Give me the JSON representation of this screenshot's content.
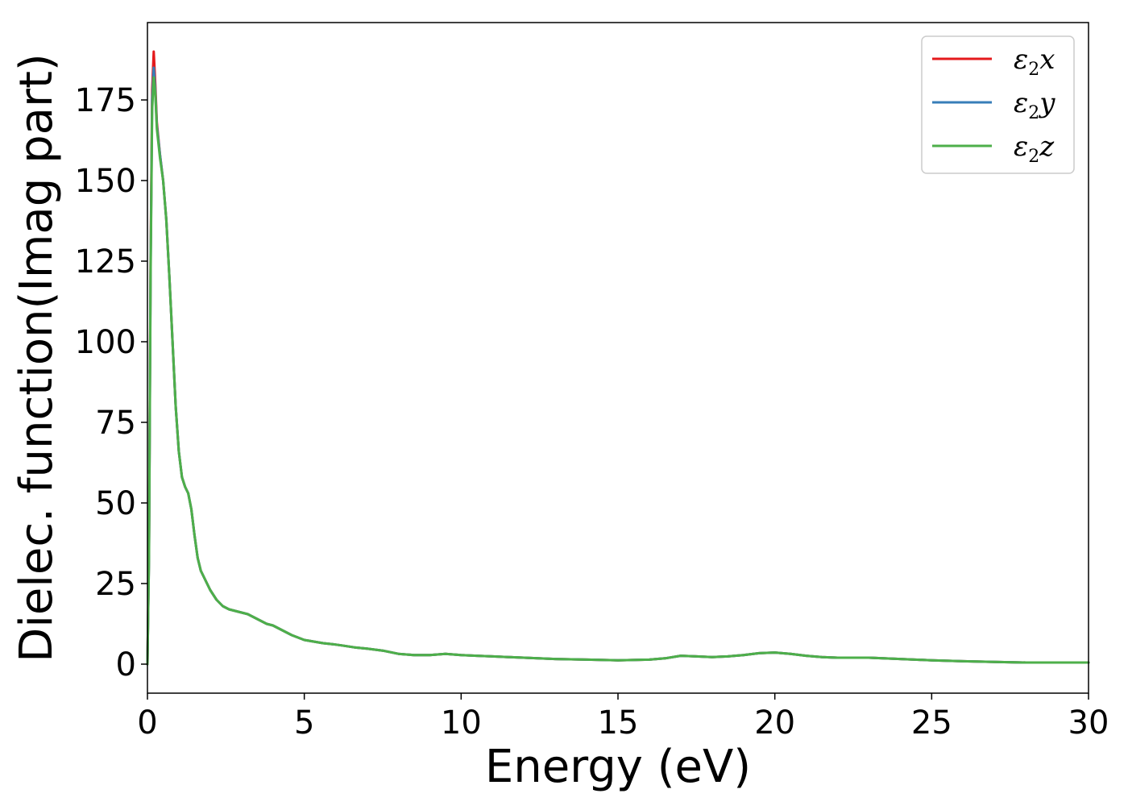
{
  "chart_data": {
    "type": "line",
    "title": "",
    "xlabel": "Energy (eV)",
    "ylabel": "Dielec. function(Imag part)",
    "xlim": [
      0,
      30
    ],
    "ylim": [
      -9,
      199
    ],
    "xticks": [
      0,
      5,
      10,
      15,
      20,
      25,
      30
    ],
    "yticks": [
      0,
      25,
      50,
      75,
      100,
      125,
      150,
      175
    ],
    "grid": false,
    "legend_position": "top-right",
    "series": [
      {
        "name": "ε2x",
        "legend_base": "ε",
        "legend_sub": "2",
        "legend_suffix": "x",
        "color": "#e41a1c",
        "x": [
          0,
          0.05,
          0.1,
          0.15,
          0.2,
          0.25,
          0.3,
          0.4,
          0.5,
          0.6,
          0.7,
          0.8,
          0.9,
          1.0,
          1.1,
          1.2,
          1.3,
          1.4,
          1.5,
          1.6,
          1.7,
          1.8,
          1.9,
          2.0,
          2.2,
          2.4,
          2.6,
          2.8,
          3.0,
          3.2,
          3.4,
          3.6,
          3.8,
          4.0,
          4.3,
          4.6,
          5.0,
          5.3,
          5.6,
          5.9,
          6.2,
          6.6,
          7.0,
          7.5,
          8.0,
          8.5,
          9.0,
          9.5,
          10.0,
          10.5,
          11.0,
          11.5,
          12.0,
          13.0,
          14.0,
          15.0,
          16.0,
          16.5,
          17.0,
          17.5,
          18.0,
          18.5,
          19.0,
          19.5,
          20.0,
          20.5,
          21.0,
          21.5,
          22.0,
          22.5,
          23.0,
          24.0,
          25.0,
          26.0,
          27.0,
          28.0,
          29.0,
          30.0
        ],
        "values": [
          0,
          35,
          125,
          178,
          190,
          180,
          168,
          158,
          150,
          138,
          120,
          100,
          80,
          66,
          58,
          55,
          53,
          48,
          40,
          33,
          29,
          27,
          25,
          23,
          20,
          18,
          17,
          16.5,
          16,
          15.5,
          14.5,
          13.5,
          12.5,
          12,
          10.5,
          9,
          7.5,
          7,
          6.5,
          6.2,
          5.8,
          5.2,
          4.8,
          4.2,
          3.2,
          2.8,
          2.8,
          3.2,
          2.8,
          2.6,
          2.4,
          2.2,
          2.0,
          1.6,
          1.4,
          1.2,
          1.4,
          1.8,
          2.6,
          2.4,
          2.2,
          2.4,
          2.8,
          3.4,
          3.6,
          3.2,
          2.6,
          2.2,
          2.0,
          2.0,
          2.0,
          1.6,
          1.2,
          0.9,
          0.7,
          0.5,
          0.5,
          0.5
        ]
      },
      {
        "name": "ε2y",
        "legend_base": "ε",
        "legend_sub": "2",
        "legend_suffix": "y",
        "color": "#377eb8",
        "x": [
          0,
          0.05,
          0.1,
          0.15,
          0.2,
          0.25,
          0.3,
          0.4,
          0.5,
          0.6,
          0.7,
          0.8,
          0.9,
          1.0,
          1.1,
          1.2,
          1.3,
          1.4,
          1.5,
          1.6,
          1.7,
          1.8,
          1.9,
          2.0,
          2.2,
          2.4,
          2.6,
          2.8,
          3.0,
          3.2,
          3.4,
          3.6,
          3.8,
          4.0,
          4.3,
          4.6,
          5.0,
          5.3,
          5.6,
          5.9,
          6.2,
          6.6,
          7.0,
          7.5,
          8.0,
          8.5,
          9.0,
          9.5,
          10.0,
          10.5,
          11.0,
          11.5,
          12.0,
          13.0,
          14.0,
          15.0,
          16.0,
          16.5,
          17.0,
          17.5,
          18.0,
          18.5,
          19.0,
          19.5,
          20.0,
          20.5,
          21.0,
          21.5,
          22.0,
          22.5,
          23.0,
          24.0,
          25.0,
          26.0,
          27.0,
          28.0,
          29.0,
          30.0
        ],
        "values": [
          0,
          34,
          122,
          175,
          185,
          178,
          167,
          158,
          150,
          138,
          120,
          100,
          80,
          66,
          58,
          55,
          53,
          48,
          40,
          33,
          29,
          27,
          25,
          23,
          20,
          18,
          17,
          16.5,
          16,
          15.5,
          14.5,
          13.5,
          12.5,
          12,
          10.5,
          9,
          7.5,
          7,
          6.5,
          6.2,
          5.8,
          5.2,
          4.8,
          4.2,
          3.2,
          2.8,
          2.8,
          3.2,
          2.8,
          2.6,
          2.4,
          2.2,
          2.0,
          1.6,
          1.4,
          1.2,
          1.4,
          1.8,
          2.6,
          2.4,
          2.2,
          2.4,
          2.8,
          3.4,
          3.6,
          3.2,
          2.6,
          2.2,
          2.0,
          2.0,
          2.0,
          1.6,
          1.2,
          0.9,
          0.7,
          0.5,
          0.5,
          0.5
        ]
      },
      {
        "name": "ε2z",
        "legend_base": "ε",
        "legend_sub": "2",
        "legend_suffix": "z",
        "color": "#4daf4a",
        "x": [
          0,
          0.05,
          0.1,
          0.15,
          0.2,
          0.25,
          0.3,
          0.4,
          0.5,
          0.6,
          0.7,
          0.8,
          0.9,
          1.0,
          1.1,
          1.2,
          1.3,
          1.4,
          1.5,
          1.6,
          1.7,
          1.8,
          1.9,
          2.0,
          2.2,
          2.4,
          2.6,
          2.8,
          3.0,
          3.2,
          3.4,
          3.6,
          3.8,
          4.0,
          4.3,
          4.6,
          5.0,
          5.3,
          5.6,
          5.9,
          6.2,
          6.6,
          7.0,
          7.5,
          8.0,
          8.5,
          9.0,
          9.5,
          10.0,
          10.5,
          11.0,
          11.5,
          12.0,
          13.0,
          14.0,
          15.0,
          16.0,
          16.5,
          17.0,
          17.5,
          18.0,
          18.5,
          19.0,
          19.5,
          20.0,
          20.5,
          21.0,
          21.5,
          22.0,
          22.5,
          23.0,
          24.0,
          25.0,
          26.0,
          27.0,
          28.0,
          29.0,
          30.0
        ],
        "values": [
          0,
          33,
          120,
          172,
          182,
          177,
          166,
          157,
          150,
          138,
          120,
          100,
          80,
          66,
          58,
          55,
          53,
          48,
          40,
          33,
          29,
          27,
          25,
          23,
          20,
          18,
          17,
          16.5,
          16,
          15.5,
          14.5,
          13.5,
          12.5,
          12,
          10.5,
          9,
          7.5,
          7,
          6.5,
          6.2,
          5.8,
          5.2,
          4.8,
          4.2,
          3.2,
          2.8,
          2.8,
          3.2,
          2.8,
          2.6,
          2.4,
          2.2,
          2.0,
          1.6,
          1.4,
          1.2,
          1.4,
          1.8,
          2.6,
          2.4,
          2.2,
          2.4,
          2.8,
          3.4,
          3.6,
          3.2,
          2.6,
          2.2,
          2.0,
          2.0,
          2.0,
          1.6,
          1.2,
          0.9,
          0.7,
          0.5,
          0.5,
          0.5
        ]
      }
    ]
  }
}
